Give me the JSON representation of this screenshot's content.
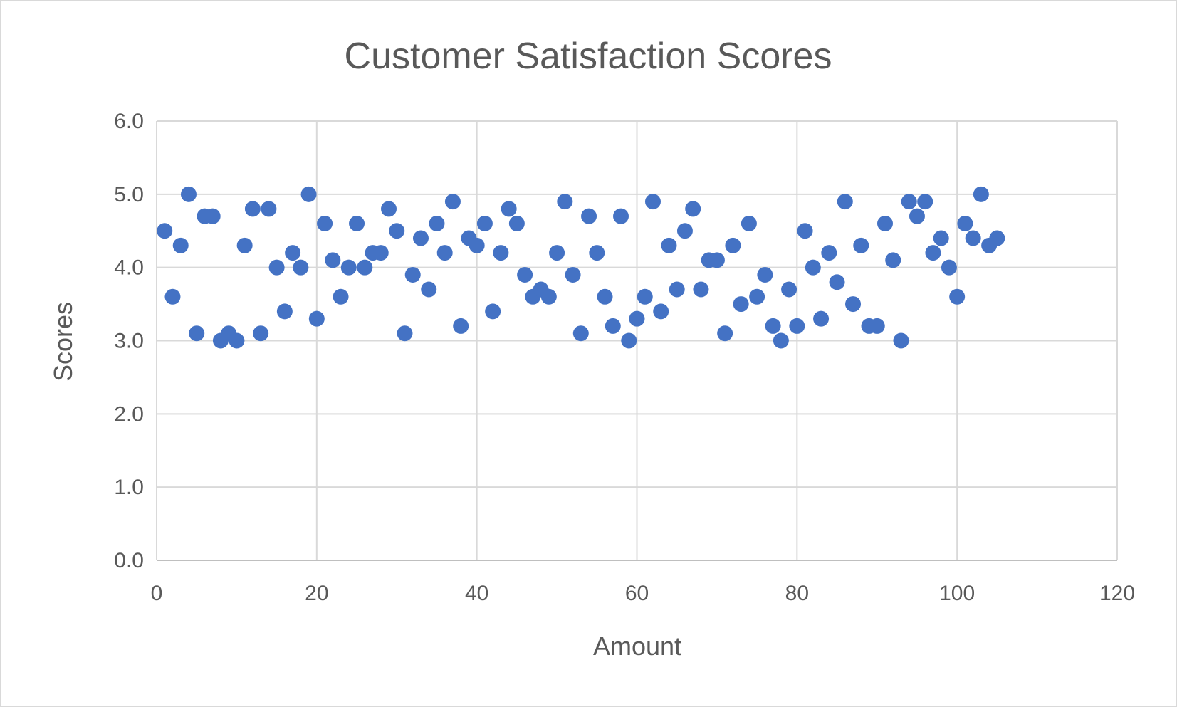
{
  "chart_data": {
    "type": "scatter",
    "title": "Customer Satisfaction Scores",
    "xlabel": "Amount",
    "ylabel": "Scores",
    "xlim": [
      0,
      120
    ],
    "ylim": [
      0,
      6
    ],
    "x_ticks": [
      "0",
      "20",
      "40",
      "60",
      "80",
      "100",
      "120"
    ],
    "y_ticks": [
      "0.0",
      "1.0",
      "2.0",
      "3.0",
      "4.0",
      "5.0",
      "6.0"
    ],
    "grid": true,
    "legend": "none",
    "marker_color": "#4472C4",
    "x": [
      1,
      2,
      3,
      4,
      5,
      6,
      7,
      8,
      9,
      10,
      11,
      12,
      13,
      14,
      15,
      16,
      17,
      18,
      19,
      20,
      21,
      22,
      23,
      24,
      25,
      26,
      27,
      28,
      29,
      30,
      31,
      32,
      33,
      34,
      35,
      36,
      37,
      38,
      39,
      40,
      41,
      42,
      43,
      44,
      45,
      46,
      47,
      48,
      49,
      50,
      51,
      52,
      53,
      54,
      55,
      56,
      57,
      58,
      59,
      60,
      61,
      62,
      63,
      64,
      65,
      66,
      67,
      68,
      69,
      70,
      71,
      72,
      73,
      74,
      75,
      76,
      77,
      78,
      79,
      80,
      81,
      82,
      83,
      84,
      85,
      86,
      87,
      88,
      89,
      90,
      91,
      92,
      93,
      94,
      95,
      96,
      97,
      98,
      99,
      100,
      101,
      102,
      103,
      104,
      105
    ],
    "y": [
      4.5,
      3.6,
      4.3,
      5.0,
      3.1,
      4.7,
      4.7,
      3.0,
      3.1,
      3.0,
      4.3,
      4.8,
      3.1,
      4.8,
      4.0,
      3.4,
      4.2,
      4.0,
      5.0,
      3.3,
      4.6,
      4.1,
      3.6,
      4.0,
      4.6,
      4.0,
      4.2,
      4.2,
      4.8,
      4.5,
      3.1,
      3.9,
      4.4,
      3.7,
      4.6,
      4.2,
      4.9,
      3.2,
      4.4,
      4.3,
      4.6,
      3.4,
      4.2,
      4.8,
      4.6,
      3.9,
      3.6,
      3.7,
      3.6,
      4.2,
      4.9,
      3.9,
      3.1,
      4.7,
      4.2,
      3.6,
      3.2,
      4.7,
      3.0,
      3.3,
      3.6,
      4.9,
      3.4,
      4.3,
      3.7,
      4.5,
      4.8,
      3.7,
      4.1,
      4.1,
      3.1,
      4.3,
      3.5,
      4.6,
      3.6,
      3.9,
      3.2,
      3.0,
      3.7,
      3.2,
      4.5,
      4.0,
      3.3,
      4.2,
      3.8,
      4.9,
      3.5,
      4.3,
      3.2,
      3.2,
      4.6,
      4.1,
      3.0,
      4.9,
      4.7,
      4.9,
      4.2,
      4.4,
      4.0,
      3.6,
      4.6,
      4.4,
      5.0,
      4.3,
      4.4
    ]
  }
}
